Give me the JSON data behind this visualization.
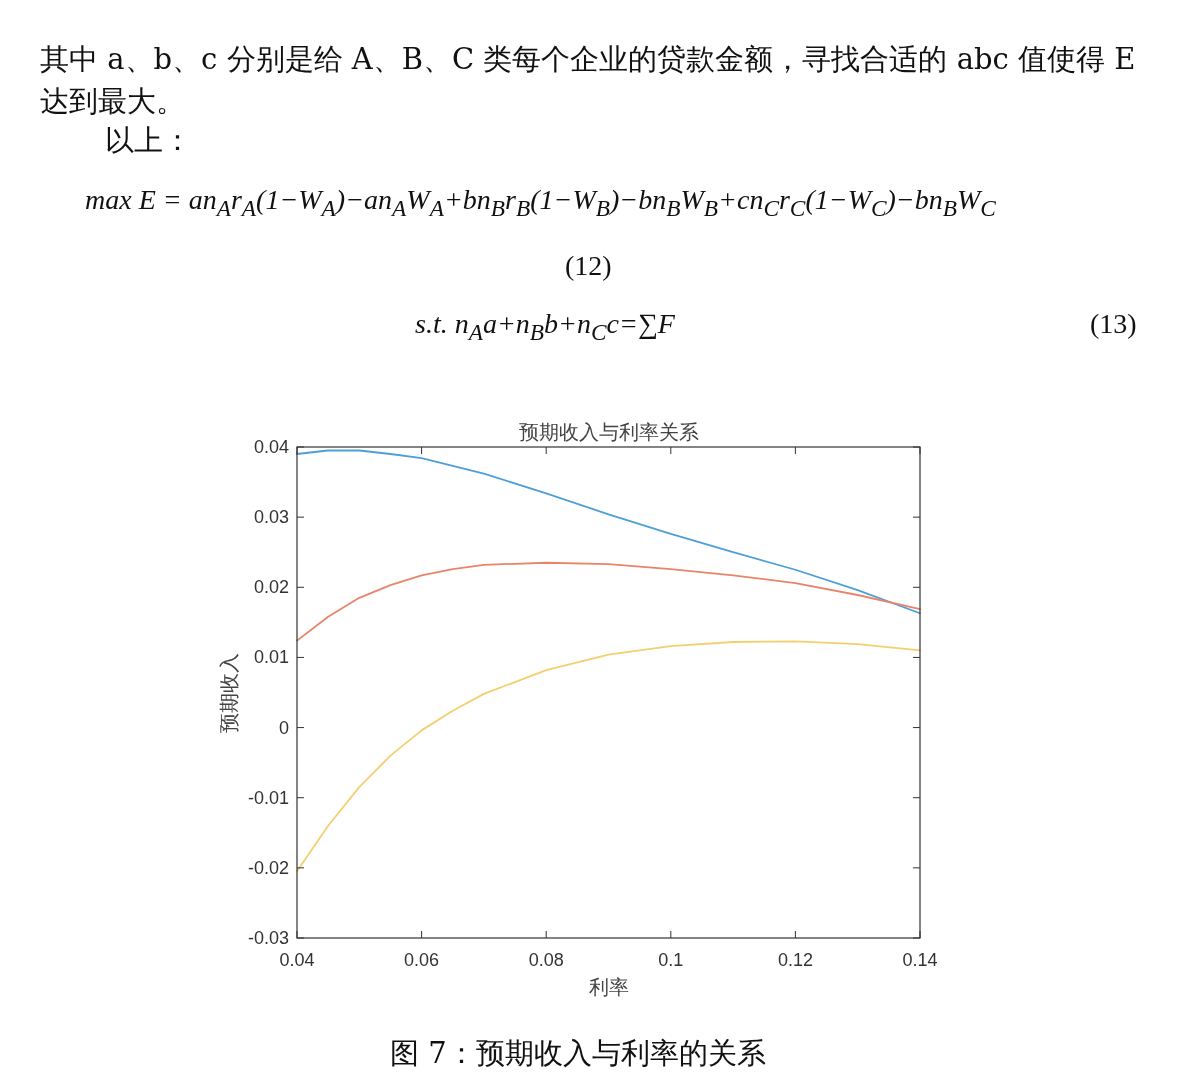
{
  "chart_data": {
    "type": "line",
    "title": "预期收入与利率关系",
    "xlabel": "利率",
    "ylabel": "预期收入",
    "xlim": [
      0.04,
      0.14
    ],
    "xticks": [
      0.04,
      0.06,
      0.08,
      0.1,
      0.12,
      0.14
    ],
    "ylim": [
      -0.03,
      0.04
    ],
    "yticks": [
      -0.03,
      -0.02,
      -0.01,
      0,
      0.01,
      0.02,
      0.03,
      0.04
    ],
    "series": [
      {
        "color": "#4d9fd8",
        "x": [
          0.04,
          0.045,
          0.05,
          0.055,
          0.06,
          0.07,
          0.08,
          0.09,
          0.1,
          0.11,
          0.12,
          0.13,
          0.14
        ],
        "values": [
          0.039,
          0.0395,
          0.0395,
          0.039,
          0.0384,
          0.0362,
          0.0334,
          0.0304,
          0.0276,
          0.025,
          0.0225,
          0.0196,
          0.0163
        ]
      },
      {
        "color": "#e8846c",
        "x": [
          0.04,
          0.045,
          0.05,
          0.055,
          0.06,
          0.065,
          0.07,
          0.08,
          0.09,
          0.1,
          0.11,
          0.12,
          0.13,
          0.14
        ],
        "values": [
          0.0124,
          0.0158,
          0.0185,
          0.0203,
          0.0217,
          0.0226,
          0.0232,
          0.0235,
          0.0233,
          0.0226,
          0.0217,
          0.0206,
          0.0189,
          0.0169
        ]
      },
      {
        "color": "#f3cf6e",
        "x": [
          0.04,
          0.045,
          0.05,
          0.055,
          0.06,
          0.065,
          0.07,
          0.08,
          0.09,
          0.1,
          0.11,
          0.12,
          0.13,
          0.14
        ],
        "values": [
          -0.0205,
          -0.014,
          -0.0085,
          -0.004,
          -0.0004,
          0.0024,
          0.0048,
          0.0082,
          0.0104,
          0.0116,
          0.0122,
          0.0123,
          0.0119,
          0.011
        ]
      }
    ],
    "annotations": [
      "其中 a、b、c 分别是给 A、B、C 类每个企业的贷款金额，寻找合适的 abc 值使得 E 达到最大。",
      "以上：",
      "max  E = an$_{A}$r$_{A}$(1−W$_{A}$)−an$_{A}$W$_{A}$+bn$_{B}$r$_{B}$(1−W$_{B}$)−bn$_{B}$W$_{B}$+cn$_{C}$r$_{C}$(1−W$_{C}$)−bn$_{B}$W$_{C}$",
      "(12)",
      "s.t.   n$_{A}$a+n$_{B}$b+n$_{C}$c=∑F",
      "(13)",
      "图 7：预期收入与利率的关系"
    ]
  }
}
